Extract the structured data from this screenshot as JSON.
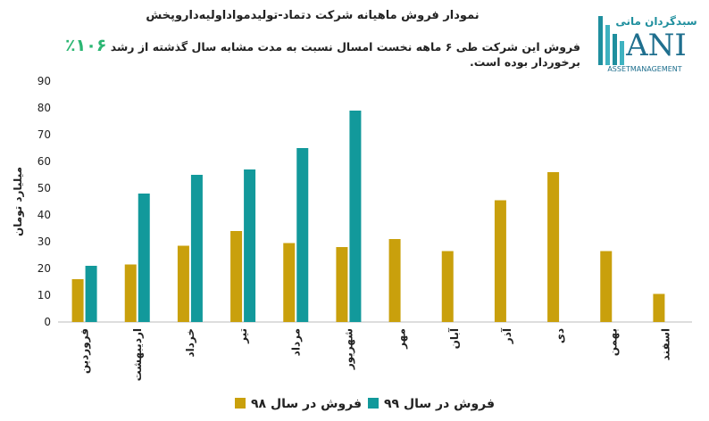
{
  "chart_data": {
    "type": "bar",
    "title": "نمودار فروش ماهیانه شرکت دتماد-تولیدمواداولیه‌داروپخش",
    "subtitle": {
      "before": "فروش این شرکت طی ۶ ماهه نخست امسال نسبت به مدت مشابه سال گذشته از رشد",
      "highlight": "۱۰۶٪",
      "after": "برخوردار بوده است."
    },
    "y_label": "میلیارد تومان",
    "categories": [
      "فروردین",
      "اردیبهشت",
      "خرداد",
      "تیر",
      "مرداد",
      "شهریور",
      "مهر",
      "آبان",
      "آذر",
      "دی",
      "بهمن",
      "اسفند"
    ],
    "series": [
      {
        "name": "فروش در سال ۹۸",
        "color": "#c9a00c",
        "values": [
          16,
          21.5,
          28.5,
          34,
          29.5,
          28,
          31,
          26.5,
          45.5,
          56,
          26.5,
          10.5
        ]
      },
      {
        "name": "فروش در سال ۹۹",
        "color": "#12999b",
        "values": [
          21,
          48,
          55,
          57,
          65,
          79,
          null,
          null,
          null,
          null,
          null,
          null
        ]
      }
    ],
    "ylim": [
      0,
      90
    ],
    "yticks": [
      0,
      10,
      20,
      30,
      40,
      50,
      60,
      70,
      80,
      90
    ],
    "grid": false
  },
  "logo": {
    "name": "سبدگردان مانی",
    "mark": "ANI",
    "tagline": "ASSETMANAGEMENT"
  }
}
